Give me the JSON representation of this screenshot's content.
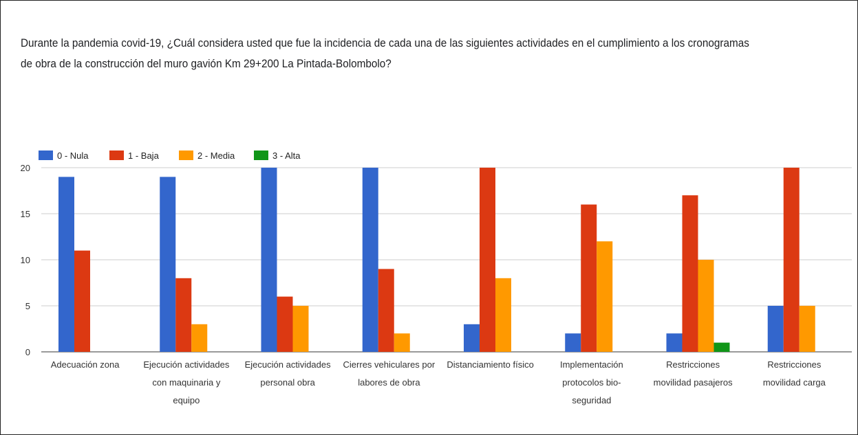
{
  "question": "Durante la pandemia covid-19, ¿Cuál considera usted que fue la incidencia de cada una de las siguientes actividades en el cumplimiento a los cronogramas de obra de la construcción del muro gavión Km 29+200 La Pintada-Bolombolo?",
  "chart_data": {
    "type": "bar",
    "title": "",
    "xlabel": "",
    "ylabel": "",
    "ylim": [
      0,
      20
    ],
    "yticks": [
      "0",
      "5",
      "10",
      "15",
      "20"
    ],
    "grid": true,
    "legend_position": "top-left",
    "categories": [
      [
        "Adecuación zona"
      ],
      [
        "Ejecución actividades",
        "con maquinaria y",
        "equipo"
      ],
      [
        "Ejecución actividades",
        "personal obra"
      ],
      [
        "Cierres vehiculares por",
        "labores de obra"
      ],
      [
        "Distanciamiento físico"
      ],
      [
        "Implementación",
        "protocolos bio-",
        "seguridad"
      ],
      [
        "Restricciones",
        "movilidad pasajeros"
      ],
      [
        "Restricciones",
        "movilidad carga"
      ]
    ],
    "series": [
      {
        "name": "0 - Nula",
        "color": "#3366cc",
        "values": [
          19,
          19,
          20,
          20,
          3,
          2,
          2,
          5
        ]
      },
      {
        "name": "1 - Baja",
        "color": "#dc3912",
        "values": [
          11,
          8,
          6,
          9,
          20,
          16,
          17,
          20
        ]
      },
      {
        "name": "2 - Media",
        "color": "#ff9900",
        "values": [
          0,
          3,
          5,
          2,
          8,
          12,
          10,
          5
        ]
      },
      {
        "name": "3 - Alta",
        "color": "#109618",
        "values": [
          0,
          0,
          0,
          0,
          0,
          0,
          1,
          0
        ]
      }
    ]
  }
}
